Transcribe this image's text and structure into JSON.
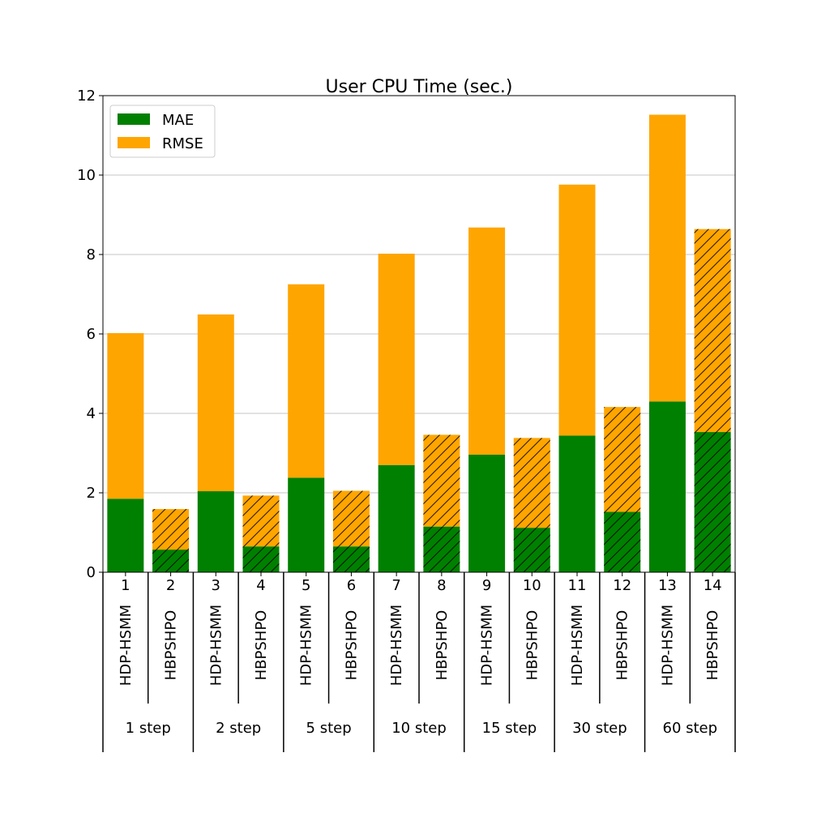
{
  "chart_data": {
    "type": "bar",
    "stacked": true,
    "title": "User CPU Time (sec.)",
    "xlabel": "",
    "ylabel": "",
    "ylim": [
      0,
      12
    ],
    "yticks": [
      "0",
      "2",
      "4",
      "6",
      "8",
      "10",
      "12"
    ],
    "grid": true,
    "legend_position": "top-left",
    "categories": [
      "1",
      "2",
      "3",
      "4",
      "5",
      "6",
      "7",
      "8",
      "9",
      "10",
      "11",
      "12",
      "13",
      "14"
    ],
    "methods": [
      "HDP-HSMM",
      "HBPSHPO",
      "HDP-HSMM",
      "HBPSHPO",
      "HDP-HSMM",
      "HBPSHPO",
      "HDP-HSMM",
      "HBPSHPO",
      "HDP-HSMM",
      "HBPSHPO",
      "HDP-HSMM",
      "HBPSHPO",
      "HDP-HSMM",
      "HBPSHPO"
    ],
    "hatched": [
      false,
      true,
      false,
      true,
      false,
      true,
      false,
      true,
      false,
      true,
      false,
      true,
      false,
      true
    ],
    "groups": [
      "1 step",
      "2 step",
      "5 step",
      "10 step",
      "15 step",
      "30 step",
      "60 step"
    ],
    "series": [
      {
        "name": "MAE",
        "color": "#008000",
        "values": [
          1.85,
          0.57,
          2.04,
          0.65,
          2.38,
          0.65,
          2.7,
          1.15,
          2.96,
          1.12,
          3.44,
          1.52,
          4.3,
          3.53
        ]
      },
      {
        "name": "RMSE",
        "color": "#ffa500",
        "values": [
          4.17,
          1.02,
          4.45,
          1.28,
          4.87,
          1.4,
          5.32,
          2.31,
          5.72,
          2.26,
          6.32,
          2.64,
          7.22,
          5.11
        ]
      }
    ]
  }
}
